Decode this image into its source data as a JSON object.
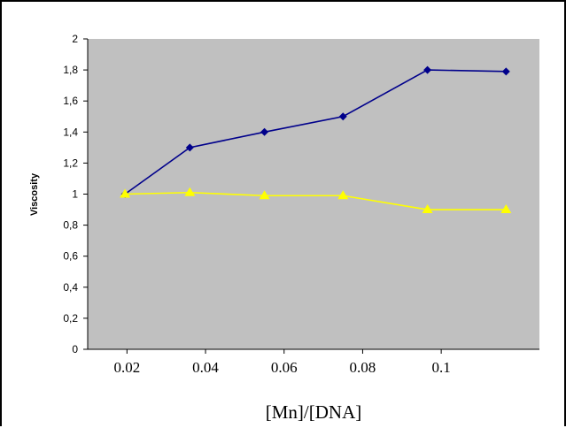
{
  "chart_data": {
    "type": "line",
    "xlabel": "[Mn]/[DNA]",
    "ylabel": "Viscosity",
    "ylim": [
      0,
      2
    ],
    "ytick_labels": [
      "0",
      "0,2",
      "0,4",
      "0,6",
      "0,8",
      "1",
      "1,2",
      "1,4",
      "1,6",
      "1,8",
      "2"
    ],
    "xtick_labels": [
      "0.02",
      "0.04",
      "0.06",
      "0.08",
      "0.1"
    ],
    "xtick_positions": [
      0.02,
      0.04,
      0.06,
      0.08,
      0.1
    ],
    "xlim": [
      0.01,
      0.125
    ],
    "x": [
      0.0195,
      0.036,
      0.055,
      0.075,
      0.0965,
      0.1165
    ],
    "series": [
      {
        "values": [
          1.0,
          1.3,
          1.4,
          1.5,
          1.8,
          1.79
        ],
        "color": "#00008B",
        "marker": "diamond"
      },
      {
        "values": [
          1.0,
          1.01,
          0.99,
          0.99,
          0.9,
          0.9
        ],
        "color": "#FFFF00",
        "marker": "triangle"
      }
    ],
    "plot_background": "#C0C0C0",
    "grid": false,
    "legend": "none"
  }
}
